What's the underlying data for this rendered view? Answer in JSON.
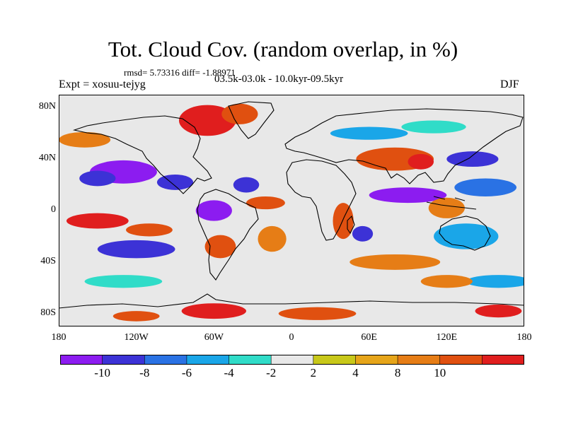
{
  "header": {
    "title": "Tot. Cloud Cov. (random overlap, in %)",
    "stats": "rmsd= 5.73316  diff= -1.88971",
    "experiment": "Expt = xosuu-tejyg",
    "period": "03.5k-03.0k - 10.0kyr-09.5kyr",
    "season": "DJF"
  },
  "map": {
    "projection": "cylindrical equidistant",
    "lon_range": [
      -180,
      180
    ],
    "lat_range": [
      -90,
      90
    ],
    "lat_labels": [
      {
        "text": "80N",
        "lat": 80
      },
      {
        "text": "40N",
        "lat": 40
      },
      {
        "text": "0",
        "lat": 0
      },
      {
        "text": "40S",
        "lat": -40
      },
      {
        "text": "80S",
        "lat": -80
      }
    ],
    "lon_labels": [
      {
        "text": "180",
        "lon": -180
      },
      {
        "text": "120W",
        "lon": -120
      },
      {
        "text": "60W",
        "lon": -60
      },
      {
        "text": "0",
        "lon": 0
      },
      {
        "text": "60E",
        "lon": 60
      },
      {
        "text": "120E",
        "lon": 120
      },
      {
        "text": "180",
        "lon": 180
      }
    ],
    "anomaly_blobs": [
      {
        "lon": -130,
        "lat": 30,
        "rx": 26,
        "ry": 9,
        "level": 0
      },
      {
        "lon": -150,
        "lat": 25,
        "rx": 14,
        "ry": 6,
        "level": 1
      },
      {
        "lon": -90,
        "lat": 22,
        "rx": 14,
        "ry": 6,
        "level": 1
      },
      {
        "lon": -150,
        "lat": -8,
        "rx": 24,
        "ry": 6,
        "level": 10
      },
      {
        "lon": -110,
        "lat": -15,
        "rx": 18,
        "ry": 5,
        "level": 9
      },
      {
        "lon": -120,
        "lat": -30,
        "rx": 30,
        "ry": 7,
        "level": 1
      },
      {
        "lon": -60,
        "lat": 0,
        "rx": 14,
        "ry": 8,
        "level": 0
      },
      {
        "lon": -55,
        "lat": -28,
        "rx": 12,
        "ry": 9,
        "level": 9
      },
      {
        "lon": -15,
        "lat": -22,
        "rx": 11,
        "ry": 10,
        "level": 8
      },
      {
        "lon": -20,
        "lat": 6,
        "rx": 15,
        "ry": 5,
        "level": 9
      },
      {
        "lon": -35,
        "lat": 20,
        "rx": 10,
        "ry": 6,
        "level": 1
      },
      {
        "lon": -65,
        "lat": 70,
        "rx": 22,
        "ry": 12,
        "level": 10
      },
      {
        "lon": -40,
        "lat": 75,
        "rx": 14,
        "ry": 8,
        "level": 9
      },
      {
        "lon": 40,
        "lat": -8,
        "rx": 8,
        "ry": 14,
        "level": 9
      },
      {
        "lon": 55,
        "lat": -18,
        "rx": 8,
        "ry": 6,
        "level": 1
      },
      {
        "lon": 80,
        "lat": 40,
        "rx": 30,
        "ry": 9,
        "level": 9
      },
      {
        "lon": 100,
        "lat": 38,
        "rx": 10,
        "ry": 6,
        "level": 10
      },
      {
        "lon": 90,
        "lat": 12,
        "rx": 30,
        "ry": 6,
        "level": 0
      },
      {
        "lon": 150,
        "lat": 18,
        "rx": 24,
        "ry": 7,
        "level": 2
      },
      {
        "lon": 140,
        "lat": 40,
        "rx": 20,
        "ry": 6,
        "level": 1
      },
      {
        "lon": 120,
        "lat": 2,
        "rx": 14,
        "ry": 8,
        "level": 8
      },
      {
        "lon": 135,
        "lat": -20,
        "rx": 25,
        "ry": 10,
        "level": 3
      },
      {
        "lon": 80,
        "lat": -40,
        "rx": 35,
        "ry": 6,
        "level": 8
      },
      {
        "lon": -130,
        "lat": -55,
        "rx": 30,
        "ry": 5,
        "level": 4
      },
      {
        "lon": 160,
        "lat": -55,
        "rx": 25,
        "ry": 5,
        "level": 3
      },
      {
        "lon": 120,
        "lat": -55,
        "rx": 20,
        "ry": 5,
        "level": 8
      },
      {
        "lon": -60,
        "lat": -78,
        "rx": 25,
        "ry": 6,
        "level": 10
      },
      {
        "lon": -120,
        "lat": -82,
        "rx": 18,
        "ry": 4,
        "level": 9
      },
      {
        "lon": 20,
        "lat": -80,
        "rx": 30,
        "ry": 5,
        "level": 9
      },
      {
        "lon": 160,
        "lat": -78,
        "rx": 18,
        "ry": 5,
        "level": 10
      },
      {
        "lon": 60,
        "lat": 60,
        "rx": 30,
        "ry": 5,
        "level": 3
      },
      {
        "lon": 110,
        "lat": 65,
        "rx": 25,
        "ry": 5,
        "level": 4
      },
      {
        "lon": -160,
        "lat": 55,
        "rx": 20,
        "ry": 6,
        "level": 8
      }
    ]
  },
  "colorbar": {
    "colors": [
      "#8c1cf0",
      "#3c32d6",
      "#2a72e4",
      "#1aa6e8",
      "#30dcc8",
      "#e8e8e8",
      "#c8c81a",
      "#e6a51a",
      "#e67d16",
      "#e05010",
      "#e01e1e"
    ],
    "labels": [
      "-10",
      "-8",
      "-6",
      "-4",
      "-2",
      "2",
      "4",
      "8",
      "10"
    ]
  }
}
